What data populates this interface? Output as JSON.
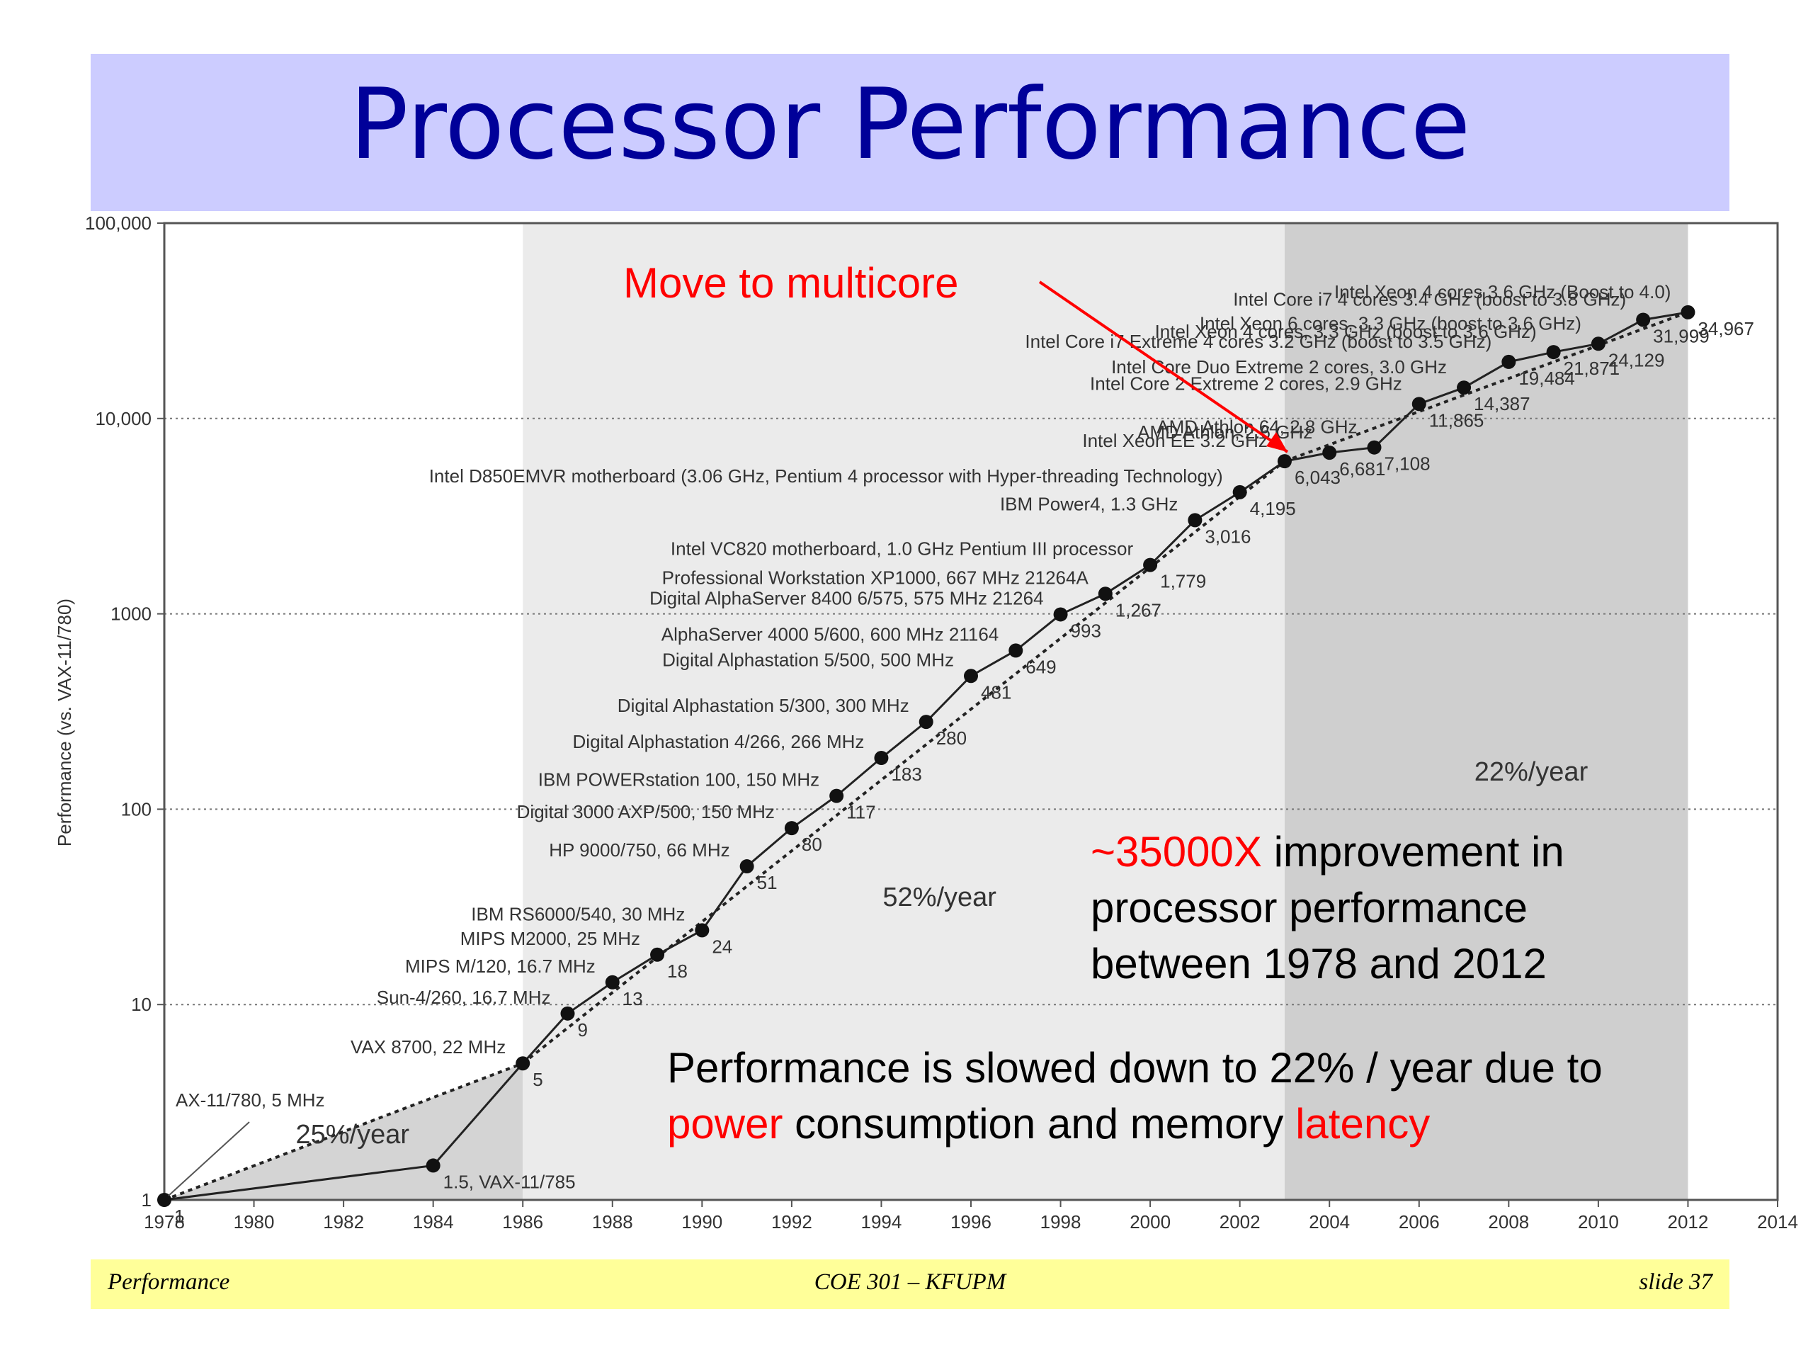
{
  "slide": {
    "title": "Processor Performance",
    "footer_left": "Performance",
    "footer_center": "COE 301 – KFUPM",
    "footer_right": "slide 37"
  },
  "colors": {
    "title_bar": "#ccccff",
    "title_text": "#000099",
    "footer_bar": "#ffff99",
    "highlight_red": "#ff0000"
  },
  "annotations": {
    "multicore": "Move to multicore",
    "improvement_highlight": "~35000X",
    "improvement_line1_rest": " improvement in",
    "improvement_line2": "processor performance",
    "improvement_line3": "between 1978 and 2012",
    "slowdown_line1": "Performance is slowed down to 22% / year due to",
    "slowdown_word_power": "power",
    "slowdown_mid": " consumption and memory ",
    "slowdown_word_latency": "latency"
  },
  "chart_data": {
    "type": "line",
    "ylabel": "Performance (vs. VAX-11/780)",
    "xlabel": "",
    "y_scale": "log",
    "xlim": [
      1978,
      2014
    ],
    "ylim": [
      1,
      100000
    ],
    "x_ticks": [
      "1978",
      "1980",
      "1982",
      "1984",
      "1986",
      "1988",
      "1990",
      "1992",
      "1994",
      "1996",
      "1998",
      "2000",
      "2002",
      "2004",
      "2006",
      "2008",
      "2010",
      "2012",
      "2014"
    ],
    "y_ticks": [
      "1",
      "10",
      "100",
      "1000",
      "10,000",
      "100,000"
    ],
    "grid": "horizontal dotted",
    "series": [
      {
        "points": [
          {
            "x": 1978,
            "y": 1,
            "value_label": "1",
            "label": "AX-11/780, 5 MHz"
          },
          {
            "x": 1984,
            "y": 1.5,
            "value_label": "1.5, VAX-11/785",
            "label": ""
          },
          {
            "x": 1986,
            "y": 5,
            "value_label": "5",
            "label": "VAX 8700, 22 MHz"
          },
          {
            "x": 1987,
            "y": 9,
            "value_label": "9",
            "label": "Sun-4/260, 16.7 MHz"
          },
          {
            "x": 1988,
            "y": 13,
            "value_label": "13",
            "label": "MIPS M/120, 16.7 MHz"
          },
          {
            "x": 1989,
            "y": 18,
            "value_label": "18",
            "label": "MIPS M2000, 25 MHz"
          },
          {
            "x": 1990,
            "y": 24,
            "value_label": "24",
            "label": "IBM RS6000/540, 30 MHz"
          },
          {
            "x": 1991,
            "y": 51,
            "value_label": "51",
            "label": "HP 9000/750, 66 MHz"
          },
          {
            "x": 1992,
            "y": 80,
            "value_label": "80",
            "label": "Digital 3000 AXP/500, 150 MHz"
          },
          {
            "x": 1993,
            "y": 117,
            "value_label": "117",
            "label": "IBM POWERstation 100, 150 MHz"
          },
          {
            "x": 1994,
            "y": 183,
            "value_label": "183",
            "label": "Digital Alphastation 4/266, 266 MHz"
          },
          {
            "x": 1995,
            "y": 280,
            "value_label": "280",
            "label": "Digital Alphastation 5/300, 300 MHz"
          },
          {
            "x": 1996,
            "y": 481,
            "value_label": "481",
            "label": "Digital Alphastation 5/500, 500 MHz"
          },
          {
            "x": 1997,
            "y": 649,
            "value_label": "649",
            "label": "AlphaServer 4000 5/600, 600 MHz 21164"
          },
          {
            "x": 1998,
            "y": 993,
            "value_label": "993",
            "label": "Digital AlphaServer 8400 6/575, 575 MHz 21264"
          },
          {
            "x": 1999,
            "y": 1267,
            "value_label": "1,267",
            "label": "Professional Workstation XP1000, 667 MHz 21264A"
          },
          {
            "x": 2000,
            "y": 1779,
            "value_label": "1,779",
            "label": "Intel VC820 motherboard, 1.0 GHz Pentium III processor"
          },
          {
            "x": 2001,
            "y": 3016,
            "value_label": "3,016",
            "label": "IBM Power4, 1.3 GHz"
          },
          {
            "x": 2002,
            "y": 4195,
            "value_label": "4,195",
            "label": "Intel D850EMVR motherboard (3.06 GHz, Pentium 4 processor with Hyper-threading Technology)"
          },
          {
            "x": 2003,
            "y": 6043,
            "value_label": "6,043",
            "label": "Intel Xeon EE 3.2 GHz"
          },
          {
            "x": 2004,
            "y": 6681,
            "value_label": "6,681",
            "label": "AMD Athlon, 2.6 GHz"
          },
          {
            "x": 2005,
            "y": 7108,
            "value_label": "7,108",
            "label": "AMD Athlon 64, 2.8 GHz"
          },
          {
            "x": 2006,
            "y": 11865,
            "value_label": "11,865",
            "label": "Intel Core 2 Extreme 2 cores, 2.9 GHz"
          },
          {
            "x": 2007,
            "y": 14387,
            "value_label": "14,387",
            "label": "Intel Core Duo Extreme 2 cores, 3.0 GHz"
          },
          {
            "x": 2008,
            "y": 19484,
            "value_label": "19,484",
            "label": "Intel Core i7 Extreme 4 cores 3.2 GHz (boost to 3.5 GHz)"
          },
          {
            "x": 2009,
            "y": 21871,
            "value_label": "21,871",
            "label": "Intel Xeon 4 cores, 3.3 GHz (boost to 3.6 GHz)"
          },
          {
            "x": 2010,
            "y": 24129,
            "value_label": "24,129",
            "label": "Intel Xeon 6 cores, 3.3 GHz (boost to 3.6 GHz)"
          },
          {
            "x": 2011,
            "y": 31999,
            "value_label": "31,999",
            "label": "Intel Core i7 4 cores 3.4 GHz (boost to 3.8 GHz)"
          },
          {
            "x": 2012,
            "y": 34967,
            "value_label": "34,967",
            "label": "Intel Xeon 4 cores 3.6 GHz (Boost to 4.0)"
          }
        ]
      }
    ],
    "trend_segments": [
      {
        "label": "25%/year",
        "x_start": 1978,
        "x_end": 1986
      },
      {
        "label": "52%/year",
        "x_start": 1986,
        "x_end": 2003
      },
      {
        "label": "22%/year",
        "x_start": 2003,
        "x_end": 2012
      }
    ]
  }
}
